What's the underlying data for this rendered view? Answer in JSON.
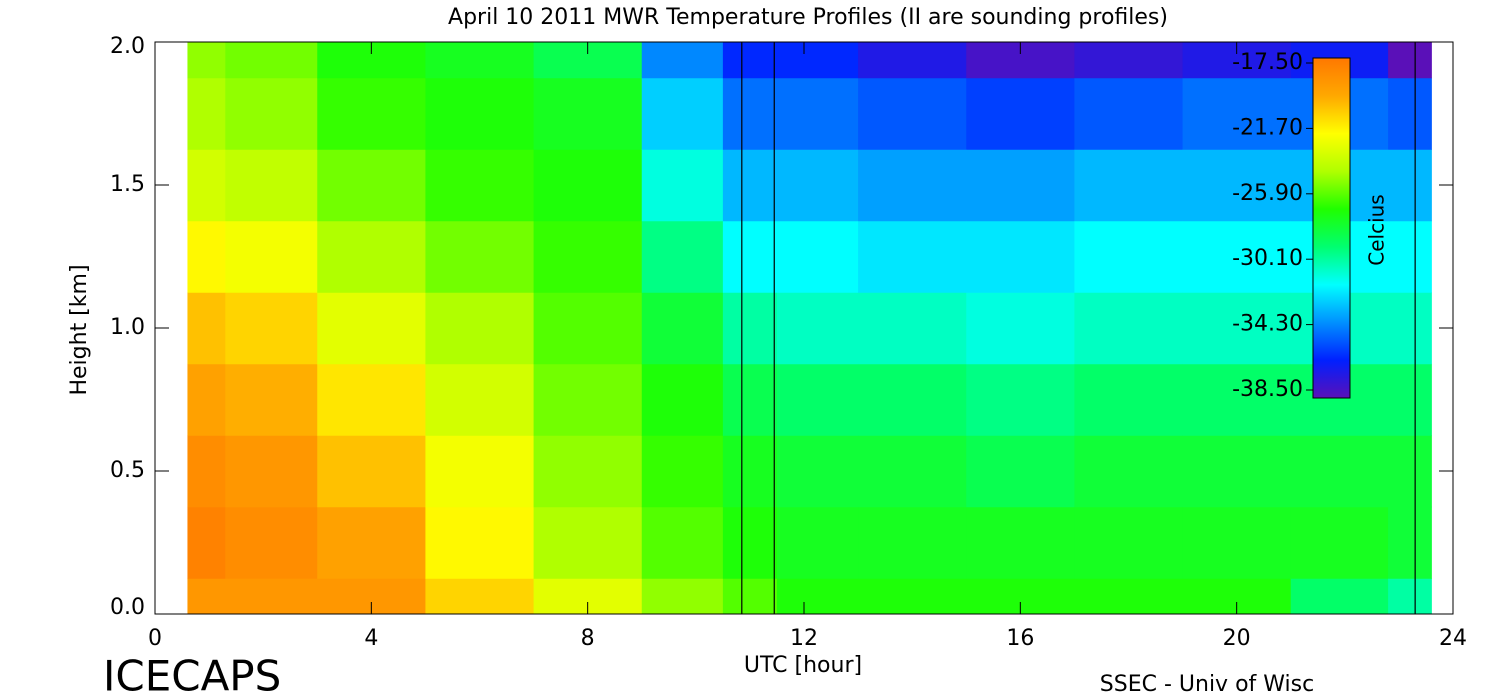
{
  "chart_data": {
    "type": "contour",
    "title": "April 10 2011 MWR Temperature Profiles (II are sounding profiles)",
    "x_label": "UTC [hour]",
    "y_label": "Height [km]",
    "footer_left": "ICECAPS",
    "footer_right": "SSEC - Univ of Wisc",
    "colorbar_label": "Celcius",
    "xlim": [
      0,
      24
    ],
    "xticks": [
      0,
      4,
      8,
      12,
      16,
      20,
      24
    ],
    "ylim": [
      0,
      2.0
    ],
    "yticks": [
      {
        "value": 0,
        "label": "0.0"
      },
      0.5,
      {
        "value": 1,
        "label": "1.0"
      },
      1.5,
      {
        "value": 2,
        "label": "2.0"
      }
    ],
    "clim": [
      -38.5,
      -17.5
    ],
    "cticks": [
      {
        "value": -17.5,
        "label": "-17.50"
      },
      {
        "value": -21.7,
        "label": "-21.70"
      },
      {
        "value": -25.9,
        "label": "-25.90"
      },
      {
        "value": -30.1,
        "label": "-30.10"
      },
      {
        "value": -34.3,
        "label": "-34.30"
      },
      {
        "value": -38.5,
        "label": "-38.50"
      }
    ],
    "colormap": [
      "#5a10b8",
      "#0020ff",
      "#0090ff",
      "#00ffff",
      "#00ff70",
      "#20ff00",
      "#b0ff00",
      "#ffff00",
      "#ffa800",
      "#ff7800"
    ],
    "soundings": [
      10.85,
      11.45,
      23.3
    ],
    "x": [
      0.6,
      2,
      4,
      6,
      8,
      10,
      11,
      12,
      14,
      16,
      18,
      20,
      22,
      23.6
    ],
    "heights": [
      0,
      0.25,
      0.5,
      0.75,
      1.0,
      1.25,
      1.5,
      1.75,
      2.0
    ],
    "z": [
      [
        -19,
        -18,
        -18.5,
        -19.5,
        -20.5,
        -22,
        -23.5,
        -24.5,
        -25
      ],
      [
        -19,
        -18.5,
        -19,
        -20,
        -21,
        -22.5,
        -24,
        -25,
        -25.5
      ],
      [
        -19,
        -19.5,
        -20.5,
        -21.5,
        -23,
        -24.5,
        -25.5,
        -26.5,
        -27
      ],
      [
        -21,
        -22,
        -22.5,
        -23.5,
        -24.5,
        -25.5,
        -26.5,
        -27,
        -27.5
      ],
      [
        -23,
        -24.5,
        -25,
        -25.5,
        -26,
        -26.5,
        -27,
        -27.5,
        -28.5
      ],
      [
        -25,
        -26,
        -26.5,
        -27,
        -28,
        -29.5,
        -31,
        -32.5,
        -34
      ],
      [
        -26,
        -27,
        -27.5,
        -28.5,
        -30,
        -31.5,
        -33,
        -34.5,
        -36
      ],
      [
        -27,
        -27.5,
        -28,
        -29,
        -30.5,
        -31.5,
        -33,
        -34.5,
        -36
      ],
      [
        -27,
        -27.5,
        -28,
        -29,
        -30.5,
        -32,
        -33.5,
        -35,
        -37
      ],
      [
        -27,
        -27.5,
        -28.5,
        -29.5,
        -31,
        -32,
        -33.5,
        -35.5,
        -38
      ],
      [
        -27,
        -27.5,
        -28,
        -29,
        -30.5,
        -31.5,
        -33,
        -35,
        -37.5
      ],
      [
        -27,
        -27.5,
        -28,
        -29,
        -30.5,
        -31.5,
        -33,
        -34.5,
        -37
      ],
      [
        -29,
        -27.5,
        -28,
        -29,
        -30.5,
        -31.5,
        -33,
        -34.5,
        -36.5
      ],
      [
        -30,
        -28,
        -28,
        -29,
        -30.5,
        -31.5,
        -33,
        -35,
        -38.5
      ]
    ]
  }
}
